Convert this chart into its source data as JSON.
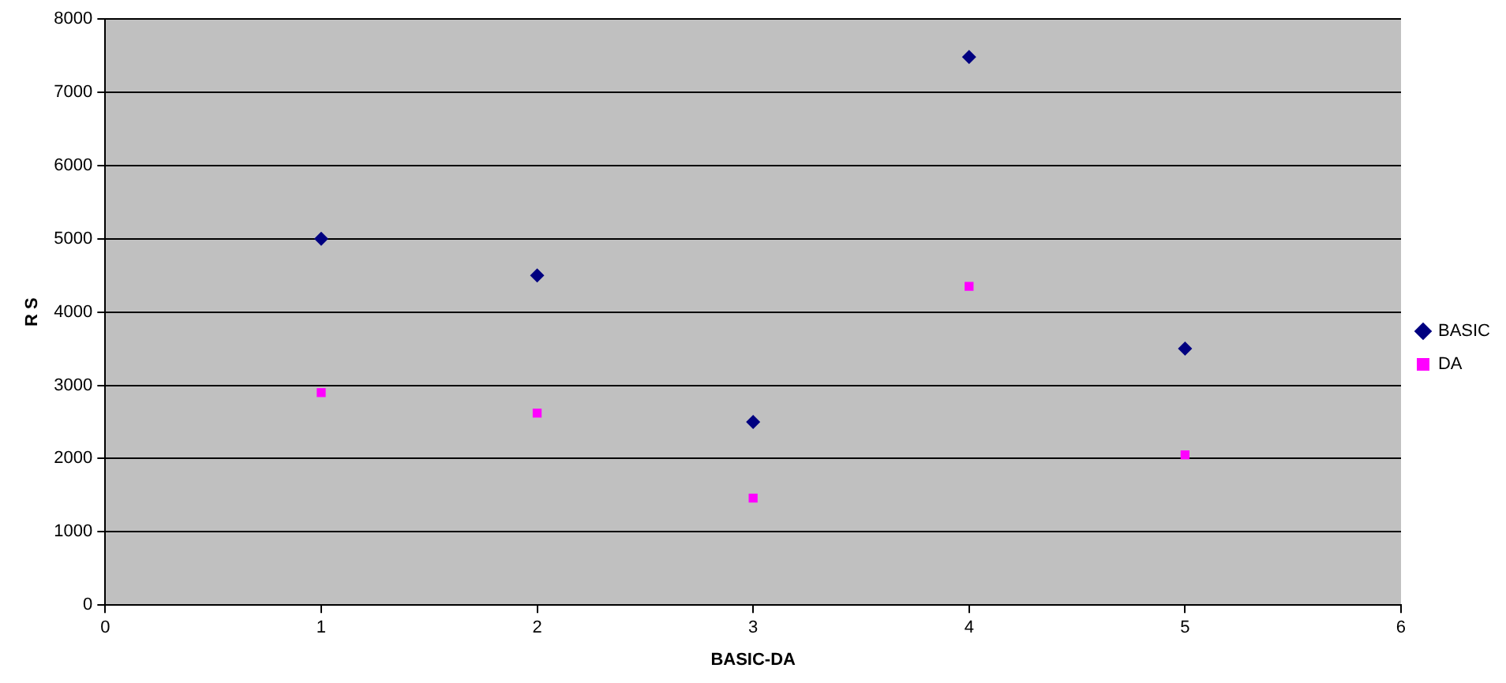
{
  "chart_data": {
    "type": "scatter",
    "xlabel": "BASIC-DA",
    "ylabel": "R S",
    "x": [
      1,
      2,
      3,
      4,
      5
    ],
    "series": [
      {
        "name": "BASIC",
        "color": "#000080",
        "marker": "diamond",
        "values": [
          5000,
          4500,
          2500,
          7480,
          3500
        ]
      },
      {
        "name": "DA",
        "color": "#ff00ff",
        "marker": "square",
        "values": [
          2900,
          2620,
          1460,
          4350,
          2050
        ]
      }
    ],
    "xlim": [
      0,
      6
    ],
    "xticks": [
      0,
      1,
      2,
      3,
      4,
      5,
      6
    ],
    "ylim": [
      0,
      8000
    ],
    "yticks": [
      0,
      1000,
      2000,
      3000,
      4000,
      5000,
      6000,
      7000,
      8000
    ],
    "grid": "y",
    "legend": "right"
  }
}
